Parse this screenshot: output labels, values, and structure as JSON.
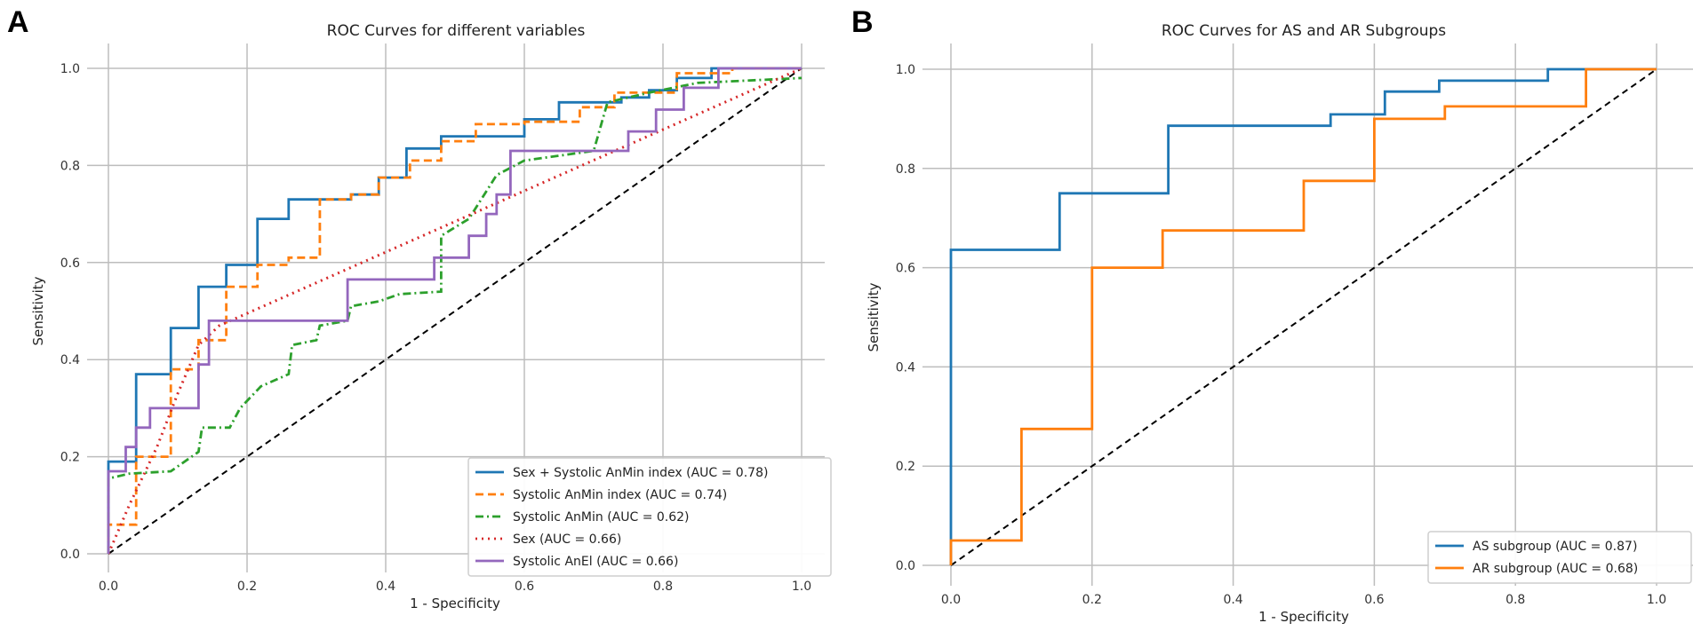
{
  "chart_data": [
    {
      "type": "line",
      "panel_label": "A",
      "title": "ROC Curves for different variables",
      "xlabel": "1 - Specificity",
      "ylabel": "Sensitivity",
      "xlim": [
        0,
        1
      ],
      "ylim": [
        0,
        1
      ],
      "grid": true,
      "legend_position": "bottom-right",
      "ticks": [
        "0.0",
        "0.2",
        "0.4",
        "0.6",
        "0.8",
        "1.0"
      ],
      "series": [
        {
          "name": "Sex + Systolic AnMin index  (AUC = 0.78)",
          "color": "#1f77b4",
          "dash": "solid",
          "points": [
            [
              0,
              0
            ],
            [
              0,
              0.19
            ],
            [
              0.04,
              0.19
            ],
            [
              0.04,
              0.37
            ],
            [
              0.09,
              0.37
            ],
            [
              0.09,
              0.465
            ],
            [
              0.13,
              0.465
            ],
            [
              0.13,
              0.55
            ],
            [
              0.17,
              0.55
            ],
            [
              0.17,
              0.595
            ],
            [
              0.215,
              0.595
            ],
            [
              0.215,
              0.69
            ],
            [
              0.26,
              0.69
            ],
            [
              0.26,
              0.73
            ],
            [
              0.35,
              0.73
            ],
            [
              0.35,
              0.74
            ],
            [
              0.39,
              0.74
            ],
            [
              0.39,
              0.775
            ],
            [
              0.43,
              0.775
            ],
            [
              0.43,
              0.835
            ],
            [
              0.48,
              0.835
            ],
            [
              0.48,
              0.86
            ],
            [
              0.6,
              0.86
            ],
            [
              0.6,
              0.895
            ],
            [
              0.65,
              0.895
            ],
            [
              0.65,
              0.93
            ],
            [
              0.74,
              0.93
            ],
            [
              0.74,
              0.94
            ],
            [
              0.78,
              0.94
            ],
            [
              0.78,
              0.955
            ],
            [
              0.82,
              0.955
            ],
            [
              0.82,
              0.98
            ],
            [
              0.87,
              0.98
            ],
            [
              0.87,
              1.0
            ],
            [
              1,
              1
            ]
          ]
        },
        {
          "name": "Systolic AnMin index (AUC = 0.74)",
          "color": "#ff7f0e",
          "dash": "dashed",
          "points": [
            [
              0,
              0
            ],
            [
              0,
              0.06
            ],
            [
              0.04,
              0.06
            ],
            [
              0.04,
              0.2
            ],
            [
              0.09,
              0.2
            ],
            [
              0.09,
              0.38
            ],
            [
              0.13,
              0.38
            ],
            [
              0.13,
              0.44
            ],
            [
              0.17,
              0.44
            ],
            [
              0.17,
              0.55
            ],
            [
              0.215,
              0.55
            ],
            [
              0.215,
              0.595
            ],
            [
              0.26,
              0.595
            ],
            [
              0.26,
              0.61
            ],
            [
              0.305,
              0.61
            ],
            [
              0.305,
              0.73
            ],
            [
              0.35,
              0.73
            ],
            [
              0.35,
              0.74
            ],
            [
              0.39,
              0.74
            ],
            [
              0.39,
              0.775
            ],
            [
              0.435,
              0.775
            ],
            [
              0.435,
              0.81
            ],
            [
              0.48,
              0.81
            ],
            [
              0.48,
              0.85
            ],
            [
              0.53,
              0.85
            ],
            [
              0.53,
              0.885
            ],
            [
              0.6,
              0.885
            ],
            [
              0.6,
              0.89
            ],
            [
              0.68,
              0.89
            ],
            [
              0.68,
              0.92
            ],
            [
              0.73,
              0.92
            ],
            [
              0.73,
              0.95
            ],
            [
              0.82,
              0.95
            ],
            [
              0.82,
              0.99
            ],
            [
              0.9,
              0.99
            ],
            [
              0.9,
              1.0
            ],
            [
              1,
              1
            ]
          ]
        },
        {
          "name": "Systolic AnMin (AUC = 0.62)",
          "color": "#2ca02c",
          "dash": "dashdot",
          "points": [
            [
              0,
              0
            ],
            [
              0,
              0.155
            ],
            [
              0.03,
              0.165
            ],
            [
              0.09,
              0.17
            ],
            [
              0.13,
              0.21
            ],
            [
              0.135,
              0.26
            ],
            [
              0.175,
              0.26
            ],
            [
              0.19,
              0.3
            ],
            [
              0.22,
              0.345
            ],
            [
              0.26,
              0.37
            ],
            [
              0.265,
              0.43
            ],
            [
              0.3,
              0.44
            ],
            [
              0.305,
              0.47
            ],
            [
              0.345,
              0.48
            ],
            [
              0.35,
              0.51
            ],
            [
              0.39,
              0.52
            ],
            [
              0.42,
              0.535
            ],
            [
              0.48,
              0.54
            ],
            [
              0.48,
              0.655
            ],
            [
              0.52,
              0.69
            ],
            [
              0.56,
              0.78
            ],
            [
              0.6,
              0.81
            ],
            [
              0.7,
              0.83
            ],
            [
              0.72,
              0.93
            ],
            [
              0.78,
              0.95
            ],
            [
              0.85,
              0.97
            ],
            [
              1,
              0.98
            ]
          ]
        },
        {
          "name": "Sex (AUC = 0.66)",
          "color": "#d62728",
          "dash": "dotted",
          "points": [
            [
              0,
              0
            ],
            [
              0.03,
              0.1
            ],
            [
              0.07,
              0.22
            ],
            [
              0.1,
              0.33
            ],
            [
              0.13,
              0.43
            ],
            [
              0.16,
              0.47
            ],
            [
              1,
              1
            ]
          ]
        },
        {
          "name": "Systolic AnEl (AUC = 0.66)",
          "color": "#9467bd",
          "dash": "solid",
          "points": [
            [
              0,
              0
            ],
            [
              0,
              0.17
            ],
            [
              0.025,
              0.17
            ],
            [
              0.025,
              0.22
            ],
            [
              0.04,
              0.22
            ],
            [
              0.04,
              0.26
            ],
            [
              0.06,
              0.26
            ],
            [
              0.06,
              0.3
            ],
            [
              0.13,
              0.3
            ],
            [
              0.13,
              0.39
            ],
            [
              0.145,
              0.39
            ],
            [
              0.145,
              0.48
            ],
            [
              0.345,
              0.48
            ],
            [
              0.345,
              0.565
            ],
            [
              0.47,
              0.565
            ],
            [
              0.47,
              0.61
            ],
            [
              0.52,
              0.61
            ],
            [
              0.52,
              0.655
            ],
            [
              0.545,
              0.655
            ],
            [
              0.545,
              0.7
            ],
            [
              0.56,
              0.7
            ],
            [
              0.56,
              0.74
            ],
            [
              0.58,
              0.74
            ],
            [
              0.58,
              0.83
            ],
            [
              0.75,
              0.83
            ],
            [
              0.75,
              0.87
            ],
            [
              0.79,
              0.87
            ],
            [
              0.79,
              0.915
            ],
            [
              0.83,
              0.915
            ],
            [
              0.83,
              0.96
            ],
            [
              0.88,
              0.96
            ],
            [
              0.88,
              1.0
            ],
            [
              1,
              1
            ]
          ]
        }
      ]
    },
    {
      "type": "line",
      "panel_label": "B",
      "title": "ROC Curves for AS and AR Subgroups",
      "xlabel": "1 - Specificity",
      "ylabel": "Sensitivity",
      "xlim": [
        0,
        1
      ],
      "ylim": [
        0,
        1
      ],
      "grid": true,
      "legend_position": "bottom-right",
      "ticks": [
        "0.0",
        "0.2",
        "0.4",
        "0.6",
        "0.8",
        "1.0"
      ],
      "series": [
        {
          "name": "AS subgroup (AUC = 0.87)",
          "color": "#1f77b4",
          "dash": "solid",
          "points": [
            [
              0,
              0
            ],
            [
              0,
              0.636
            ],
            [
              0.154,
              0.636
            ],
            [
              0.154,
              0.75
            ],
            [
              0.308,
              0.75
            ],
            [
              0.308,
              0.886
            ],
            [
              0.538,
              0.886
            ],
            [
              0.538,
              0.909
            ],
            [
              0.615,
              0.909
            ],
            [
              0.615,
              0.955
            ],
            [
              0.692,
              0.955
            ],
            [
              0.692,
              0.977
            ],
            [
              0.846,
              0.977
            ],
            [
              0.846,
              1
            ],
            [
              1,
              1
            ]
          ]
        },
        {
          "name": "AR subgroup (AUC = 0.68)",
          "color": "#ff7f0e",
          "dash": "solid",
          "points": [
            [
              0,
              0
            ],
            [
              0,
              0.05
            ],
            [
              0.1,
              0.05
            ],
            [
              0.1,
              0.275
            ],
            [
              0.2,
              0.275
            ],
            [
              0.2,
              0.6
            ],
            [
              0.3,
              0.6
            ],
            [
              0.3,
              0.675
            ],
            [
              0.5,
              0.675
            ],
            [
              0.5,
              0.775
            ],
            [
              0.6,
              0.775
            ],
            [
              0.6,
              0.9
            ],
            [
              0.7,
              0.9
            ],
            [
              0.7,
              0.925
            ],
            [
              0.9,
              0.925
            ],
            [
              0.9,
              1
            ],
            [
              1,
              1
            ]
          ]
        }
      ]
    }
  ]
}
